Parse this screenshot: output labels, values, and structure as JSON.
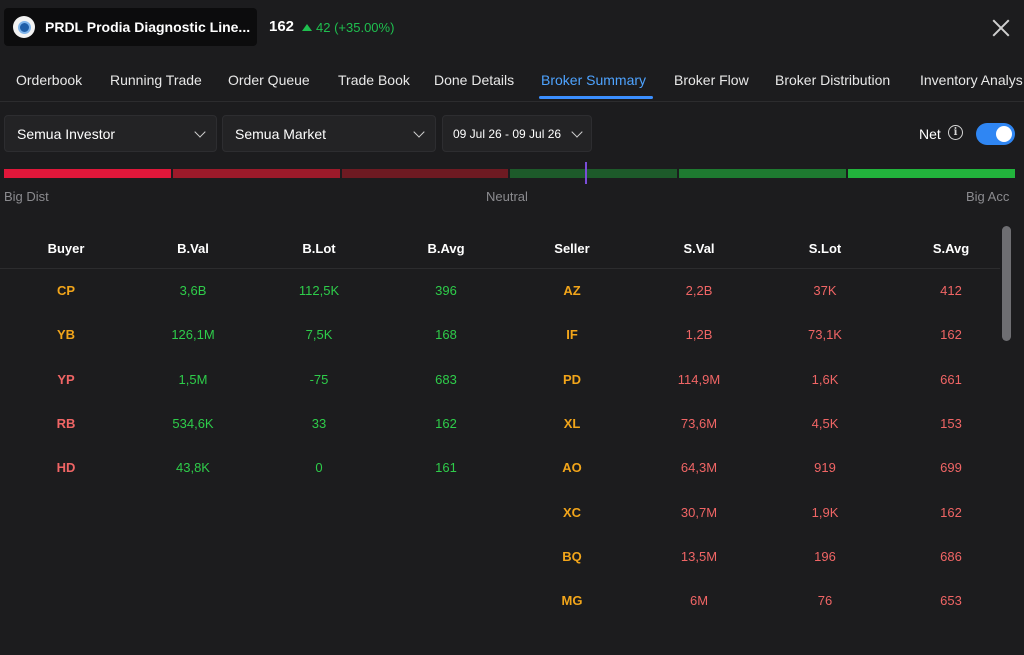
{
  "header": {
    "ticker_name": "PRDL Prodia Diagnostic Line...",
    "price": "162",
    "change": "42 (+35.00%)"
  },
  "tabs": [
    {
      "label": "Orderbook",
      "active": false
    },
    {
      "label": "Running Trade",
      "active": false
    },
    {
      "label": "Order Queue",
      "active": false
    },
    {
      "label": "Trade Book",
      "active": false
    },
    {
      "label": "Done Details",
      "active": false
    },
    {
      "label": "Broker Summary",
      "active": true
    },
    {
      "label": "Broker Flow",
      "active": false
    },
    {
      "label": "Broker Distribution",
      "active": false
    },
    {
      "label": "Inventory Analys",
      "active": false
    }
  ],
  "filters": {
    "investor": "Semua Investor",
    "market": "Semua Market",
    "date_range": "09 Jul 26 - 09 Jul 26",
    "net_label": "Net",
    "net_enabled": true
  },
  "meter": {
    "left_label": "Big Dist",
    "center_label": "Neutral",
    "right_label": "Big Acc",
    "segment_colors": [
      "#e0173a",
      "#9c1a2a",
      "#6e1a22",
      "#1d5a2a",
      "#1e7a30",
      "#22b43c"
    ],
    "position": 0.58
  },
  "table": {
    "headers": {
      "buyer": "Buyer",
      "bval": "B.Val",
      "blot": "B.Lot",
      "bavg": "B.Avg",
      "seller": "Seller",
      "sval": "S.Val",
      "slot": "S.Lot",
      "savg": "S.Avg"
    },
    "buy_rows": [
      {
        "code": "CP",
        "val": "3,6B",
        "lot": "112,5K",
        "avg": "396",
        "code_color": "orange"
      },
      {
        "code": "YB",
        "val": "126,1M",
        "lot": "7,5K",
        "avg": "168",
        "code_color": "orange"
      },
      {
        "code": "YP",
        "val": "1,5M",
        "lot": "-75",
        "avg": "683",
        "code_color": "red"
      },
      {
        "code": "RB",
        "val": "534,6K",
        "lot": "33",
        "avg": "162",
        "code_color": "red"
      },
      {
        "code": "HD",
        "val": "43,8K",
        "lot": "0",
        "avg": "161",
        "code_color": "red"
      }
    ],
    "sell_rows": [
      {
        "code": "AZ",
        "val": "2,2B",
        "lot": "37K",
        "avg": "412",
        "code_color": "orange"
      },
      {
        "code": "IF",
        "val": "1,2B",
        "lot": "73,1K",
        "avg": "162",
        "code_color": "orange"
      },
      {
        "code": "PD",
        "val": "114,9M",
        "lot": "1,6K",
        "avg": "661",
        "code_color": "orange"
      },
      {
        "code": "XL",
        "val": "73,6M",
        "lot": "4,5K",
        "avg": "153",
        "code_color": "orange"
      },
      {
        "code": "AO",
        "val": "64,3M",
        "lot": "919",
        "avg": "699",
        "code_color": "orange"
      },
      {
        "code": "XC",
        "val": "30,7M",
        "lot": "1,9K",
        "avg": "162",
        "code_color": "orange"
      },
      {
        "code": "BQ",
        "val": "13,5M",
        "lot": "196",
        "avg": "686",
        "code_color": "orange"
      },
      {
        "code": "MG",
        "val": "6M",
        "lot": "76",
        "avg": "653",
        "code_color": "orange"
      }
    ]
  }
}
